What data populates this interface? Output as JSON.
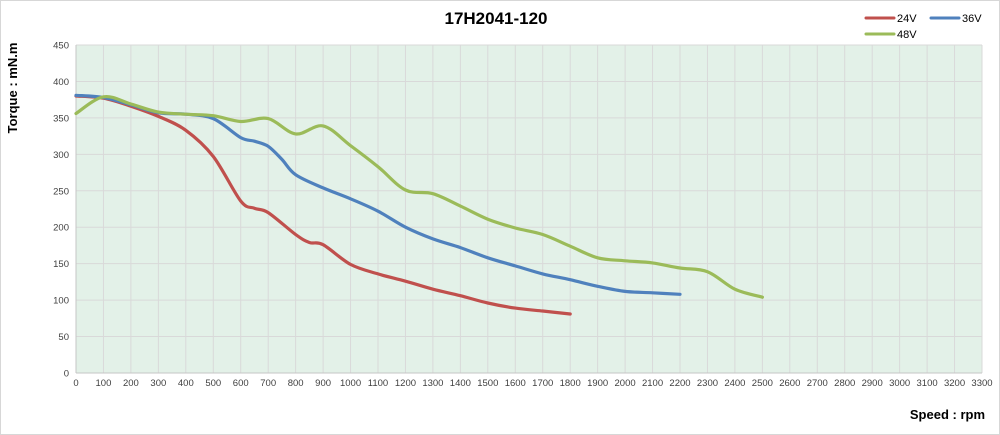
{
  "chart_data": {
    "type": "line",
    "title": "17H2041-120",
    "xlabel": "Speed : rpm",
    "ylabel": "Torque : mN.m",
    "xlim": [
      0,
      3300
    ],
    "ylim": [
      0,
      450
    ],
    "x_tick_step": 100,
    "y_tick_step": 50,
    "grid": true,
    "legend_position": "top-right",
    "colors": {
      "plot_background": "#e3f1e8",
      "grid_line": "#d9d9d9",
      "axis_line": "#c6c6c6",
      "tick_text": "#3f3f3f"
    },
    "series": [
      {
        "name": "24V",
        "color": "#c0504d",
        "points": [
          [
            0,
            380
          ],
          [
            100,
            377
          ],
          [
            200,
            366
          ],
          [
            300,
            352
          ],
          [
            400,
            333
          ],
          [
            500,
            297
          ],
          [
            600,
            236
          ],
          [
            650,
            226
          ],
          [
            700,
            220
          ],
          [
            800,
            190
          ],
          [
            850,
            179
          ],
          [
            900,
            176
          ],
          [
            1000,
            149
          ],
          [
            1100,
            136
          ],
          [
            1200,
            126
          ],
          [
            1300,
            115
          ],
          [
            1400,
            106
          ],
          [
            1500,
            96
          ],
          [
            1600,
            89
          ],
          [
            1700,
            85
          ],
          [
            1800,
            81
          ]
        ]
      },
      {
        "name": "36V",
        "color": "#4f81bd",
        "points": [
          [
            0,
            381
          ],
          [
            100,
            378
          ],
          [
            200,
            368
          ],
          [
            300,
            357
          ],
          [
            400,
            355
          ],
          [
            500,
            349
          ],
          [
            600,
            323
          ],
          [
            650,
            318
          ],
          [
            700,
            311
          ],
          [
            750,
            293
          ],
          [
            800,
            272
          ],
          [
            900,
            254
          ],
          [
            1000,
            239
          ],
          [
            1100,
            222
          ],
          [
            1200,
            200
          ],
          [
            1300,
            184
          ],
          [
            1400,
            172
          ],
          [
            1500,
            158
          ],
          [
            1600,
            147
          ],
          [
            1700,
            136
          ],
          [
            1800,
            128
          ],
          [
            1900,
            119
          ],
          [
            2000,
            112
          ],
          [
            2100,
            110
          ],
          [
            2200,
            108
          ]
        ]
      },
      {
        "name": "48V",
        "color": "#9bbb59",
        "points": [
          [
            0,
            356
          ],
          [
            100,
            379
          ],
          [
            200,
            369
          ],
          [
            300,
            358
          ],
          [
            400,
            355
          ],
          [
            500,
            353
          ],
          [
            600,
            345
          ],
          [
            700,
            349
          ],
          [
            800,
            328
          ],
          [
            900,
            339
          ],
          [
            1000,
            312
          ],
          [
            1100,
            283
          ],
          [
            1200,
            251
          ],
          [
            1300,
            246
          ],
          [
            1400,
            229
          ],
          [
            1500,
            211
          ],
          [
            1600,
            199
          ],
          [
            1700,
            190
          ],
          [
            1800,
            174
          ],
          [
            1900,
            158
          ],
          [
            2000,
            154
          ],
          [
            2100,
            151
          ],
          [
            2200,
            144
          ],
          [
            2300,
            139
          ],
          [
            2400,
            115
          ],
          [
            2500,
            104
          ]
        ]
      }
    ]
  }
}
